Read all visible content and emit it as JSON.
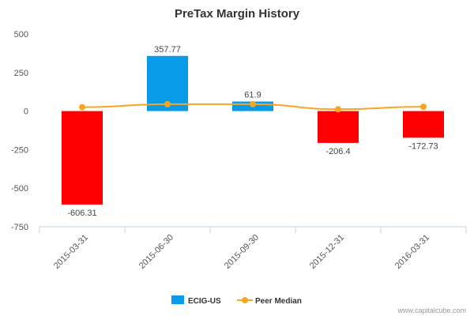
{
  "chart_data": {
    "type": "bar",
    "title": "PreTax Margin History",
    "categories": [
      "2015-03-31",
      "2015-06-30",
      "2015-09-30",
      "2015-12-31",
      "2016-03-31"
    ],
    "series": [
      {
        "name": "ECIG-US",
        "type": "bar",
        "values": [
          -606.31,
          357.77,
          61.9,
          -206.4,
          -172.73
        ],
        "labels": [
          "-606.31",
          "357.77",
          "61.9",
          "-206.4",
          "-172.73"
        ]
      },
      {
        "name": "Peer Median",
        "type": "line",
        "values": [
          25,
          45,
          45,
          12,
          28
        ]
      }
    ],
    "ylim": [
      -750,
      500
    ],
    "yticks": [
      500,
      250,
      0,
      -250,
      -500,
      -750
    ],
    "ytick_labels": [
      "500",
      "250",
      "0",
      "-250",
      "-500",
      "-750"
    ],
    "grid": false,
    "legend": "bottom-center"
  },
  "colors": {
    "positive": "#0a9be8",
    "negative": "#ff0000",
    "line": "#f5a623",
    "axis": "#c0d0e0"
  },
  "credit": "www.capitalcube.com"
}
